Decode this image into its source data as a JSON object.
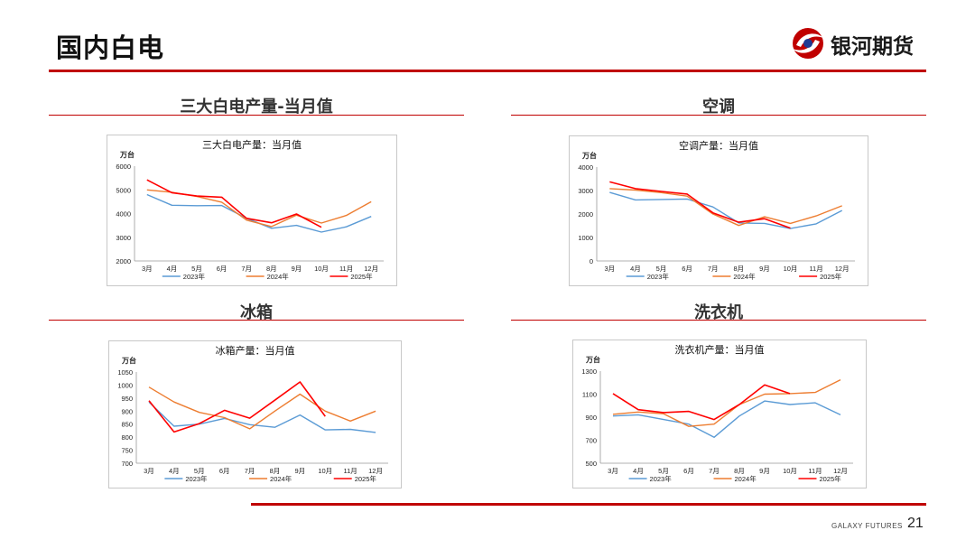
{
  "header": {
    "title": "国内白电",
    "brand_name": "银河期货"
  },
  "footer": {
    "brand": "GALAXY FUTURES",
    "page_number": "21"
  },
  "colors": {
    "accent": "#c00000",
    "s2023": "#5b9bd5",
    "s2024": "#ed7d31",
    "s2025": "#ff0000"
  },
  "sections": [
    {
      "heading": "三大白电产量-当月值"
    },
    {
      "heading": "空调"
    },
    {
      "heading": "冰箱"
    },
    {
      "heading": "洗衣机"
    }
  ],
  "chart_data": [
    {
      "type": "line",
      "title": "三大白电产量：当月值",
      "ylabel": "万台",
      "categories": [
        "3月",
        "4月",
        "5月",
        "6月",
        "7月",
        "8月",
        "9月",
        "10月",
        "11月",
        "12月"
      ],
      "ylim": [
        2000,
        6000
      ],
      "yticks": [
        2000,
        3000,
        4000,
        5000,
        6000
      ],
      "legend": "bottom",
      "series": [
        {
          "name": "2023年",
          "values": [
            4800,
            4350,
            4330,
            4340,
            3800,
            3380,
            3500,
            3220,
            3440,
            3880
          ]
        },
        {
          "name": "2024年",
          "values": [
            5000,
            4900,
            4720,
            4480,
            3720,
            3450,
            3930,
            3600,
            3920,
            4500
          ]
        },
        {
          "name": "2025年",
          "values": [
            5420,
            4880,
            4740,
            4690,
            3800,
            3610,
            3980,
            3420,
            null,
            null
          ]
        }
      ]
    },
    {
      "type": "line",
      "title": "空调产量：当月值",
      "ylabel": "万台",
      "categories": [
        "3月",
        "4月",
        "5月",
        "6月",
        "7月",
        "8月",
        "9月",
        "10月",
        "11月",
        "12月"
      ],
      "ylim": [
        0,
        4000
      ],
      "yticks": [
        0,
        1000,
        2000,
        3000,
        4000
      ],
      "legend": "bottom",
      "series": [
        {
          "name": "2023年",
          "values": [
            2920,
            2600,
            2620,
            2640,
            2300,
            1620,
            1600,
            1380,
            1580,
            2150
          ]
        },
        {
          "name": "2024年",
          "values": [
            3080,
            3020,
            2910,
            2760,
            2000,
            1510,
            1880,
            1600,
            1920,
            2350
          ]
        },
        {
          "name": "2025年",
          "values": [
            3370,
            3080,
            2960,
            2850,
            2050,
            1650,
            1800,
            1400,
            null,
            null
          ]
        }
      ]
    },
    {
      "type": "line",
      "title": "冰箱产量：当月值",
      "ylabel": "万台",
      "categories": [
        "3月",
        "4月",
        "5月",
        "6月",
        "7月",
        "8月",
        "9月",
        "10月",
        "11月",
        "12月"
      ],
      "ylim": [
        700,
        1050
      ],
      "yticks": [
        700,
        750,
        800,
        850,
        900,
        950,
        1000,
        1050
      ],
      "legend": "bottom",
      "series": [
        {
          "name": "2023年",
          "values": [
            935,
            842,
            850,
            872,
            848,
            838,
            885,
            828,
            830,
            818
          ]
        },
        {
          "name": "2024年",
          "values": [
            992,
            935,
            895,
            875,
            832,
            900,
            965,
            900,
            862,
            900
          ]
        },
        {
          "name": "2025年",
          "values": [
            940,
            820,
            852,
            903,
            873,
            942,
            1012,
            880,
            null,
            null
          ]
        }
      ]
    },
    {
      "type": "line",
      "title": "洗衣机产量：当月值",
      "ylabel": "万台",
      "categories": [
        "3月",
        "4月",
        "5月",
        "6月",
        "7月",
        "8月",
        "9月",
        "10月",
        "11月",
        "12月"
      ],
      "ylim": [
        500,
        1300
      ],
      "yticks": [
        500,
        700,
        900,
        1100,
        1300
      ],
      "legend": "bottom",
      "series": [
        {
          "name": "2023年",
          "values": [
            910,
            920,
            880,
            840,
            725,
            910,
            1040,
            1010,
            1025,
            920
          ]
        },
        {
          "name": "2024年",
          "values": [
            925,
            945,
            930,
            820,
            840,
            1010,
            1100,
            1105,
            1115,
            1225
          ]
        },
        {
          "name": "2025年",
          "values": [
            1105,
            965,
            940,
            950,
            880,
            1010,
            1180,
            1105,
            null,
            null
          ]
        }
      ]
    }
  ]
}
